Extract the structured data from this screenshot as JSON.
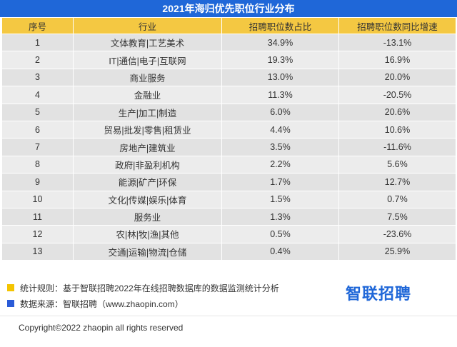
{
  "title": "2021年海归优先职位行业分布",
  "table": {
    "headers": [
      "序号",
      "行业",
      "招聘职位数占比",
      "招聘职位数同比增速"
    ],
    "rows": [
      [
        "1",
        "文体教育|工艺美术",
        "34.9%",
        "-13.1%"
      ],
      [
        "2",
        "IT|通信|电子|互联网",
        "19.3%",
        "16.9%"
      ],
      [
        "3",
        "商业服务",
        "13.0%",
        "20.0%"
      ],
      [
        "4",
        "金融业",
        "11.3%",
        "-20.5%"
      ],
      [
        "5",
        "生产|加工|制造",
        "6.0%",
        "20.6%"
      ],
      [
        "6",
        "贸易|批发|零售|租赁业",
        "4.4%",
        "10.6%"
      ],
      [
        "7",
        "房地产|建筑业",
        "3.5%",
        "-11.6%"
      ],
      [
        "8",
        "政府|非盈利机构",
        "2.2%",
        "5.6%"
      ],
      [
        "9",
        "能源|矿产|环保",
        "1.7%",
        "12.7%"
      ],
      [
        "10",
        "文化|传媒|娱乐|体育",
        "1.5%",
        "0.7%"
      ],
      [
        "11",
        "服务业",
        "1.3%",
        "7.5%"
      ],
      [
        "12",
        "农|林|牧|渔|其他",
        "0.5%",
        "-23.6%"
      ],
      [
        "13",
        "交通|运输|物流|仓储",
        "0.4%",
        "25.9%"
      ]
    ]
  },
  "notes": {
    "rule": "统计规则：基于智联招聘2022年在线招聘数据库的数据监测统计分析",
    "source": "数据来源：智联招聘（www.zhaopin.com）"
  },
  "brand": "智联招聘",
  "copyright": "Copyright©2022 zhaopin all rights reserved",
  "colors": {
    "title_bg": "#1f67d8",
    "header_bg": "#f4c842",
    "row_bg": "#e2e2e2",
    "row_alt_bg": "#ececec",
    "rule_marker": "#f4c400",
    "source_marker": "#2a5bd7"
  }
}
